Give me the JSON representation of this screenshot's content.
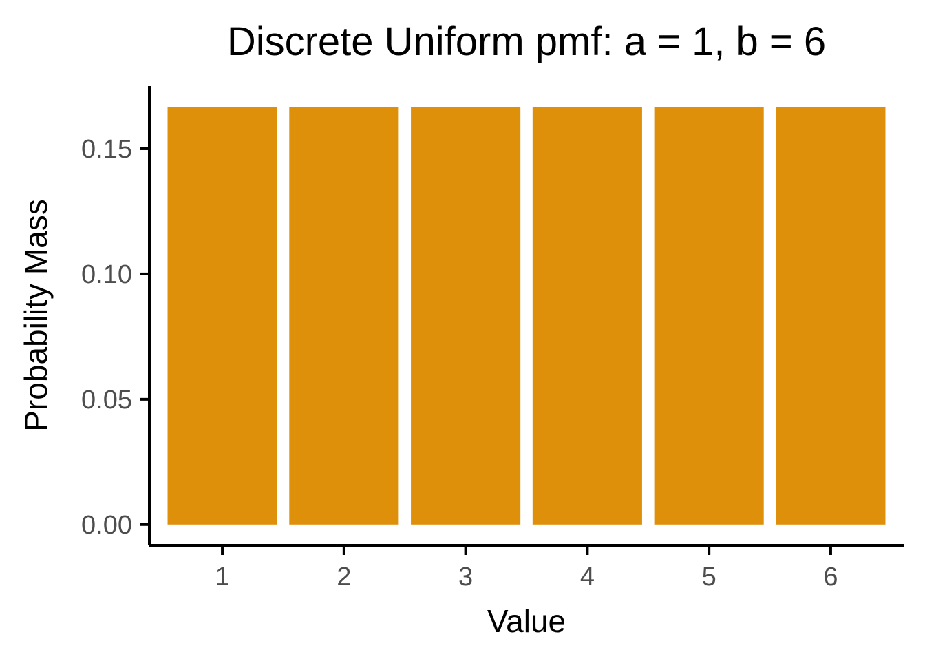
{
  "chart_data": {
    "type": "bar",
    "title": "Discrete Uniform pmf: a = 1, b = 6",
    "xlabel": "Value",
    "ylabel": "Probability Mass",
    "categories": [
      "1",
      "2",
      "3",
      "4",
      "5",
      "6"
    ],
    "values": [
      0.1667,
      0.1667,
      0.1667,
      0.1667,
      0.1667,
      0.1667
    ],
    "ylim": [
      -0.0083,
      0.175
    ],
    "yticks": [
      0.0,
      0.05,
      0.1,
      0.15
    ],
    "ytick_labels": [
      "0.00",
      "0.05",
      "0.10",
      "0.15"
    ],
    "grid": false,
    "legend": "none",
    "bar_color": "#DF900B"
  }
}
